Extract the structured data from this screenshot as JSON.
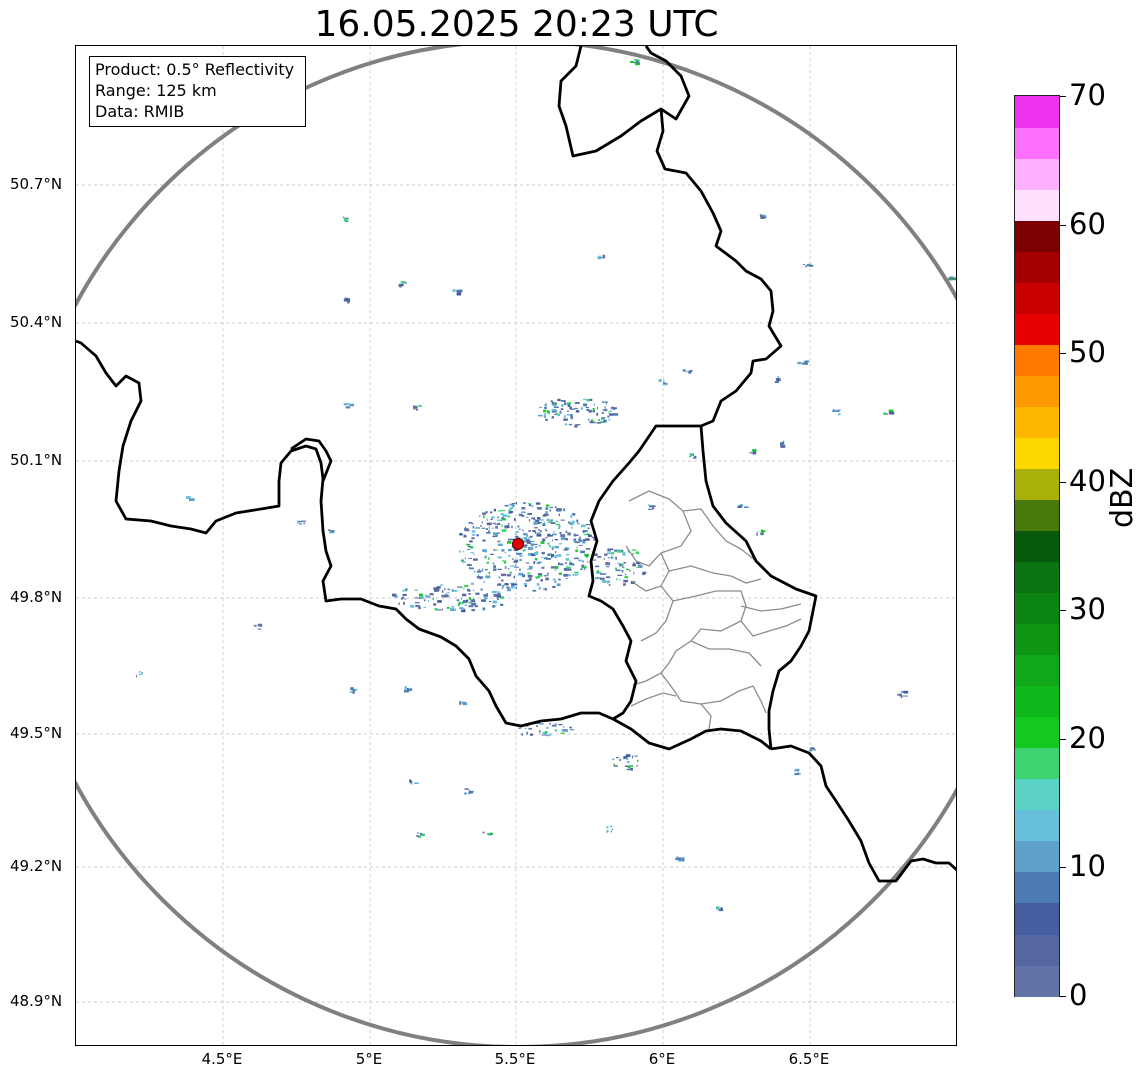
{
  "title": "16.05.2025 20:23 UTC",
  "info": {
    "product": "Product: 0.5° Reflectivity",
    "range": "Range: 125 km",
    "data": "Data: RMIB"
  },
  "axes": {
    "lat_labels": [
      "50.7°N",
      "50.4°N",
      "50.1°N",
      "49.8°N",
      "49.5°N",
      "49.2°N",
      "48.9°N"
    ],
    "lon_labels": [
      "4.5°E",
      "5°E",
      "5.5°E",
      "6°E",
      "6.5°E"
    ]
  },
  "colorbar": {
    "label": "dBZ",
    "ticks": [
      "0",
      "10",
      "20",
      "30",
      "40",
      "50",
      "60",
      "70"
    ],
    "colors": [
      "#6273a8",
      "#5467a0",
      "#445ea1",
      "#4c7cb3",
      "#5ea1ca",
      "#66c0db",
      "#5ad3c5",
      "#3ed472",
      "#14c822",
      "#10b71a",
      "#10a818",
      "#0f9514",
      "#0c8412",
      "#0b7310",
      "#06590b",
      "#487a0a",
      "#aab00a",
      "#ffd700",
      "#ffb800",
      "#ff9a00",
      "#ff7a00",
      "#e60000",
      "#c80000",
      "#a50000",
      "#7d0000",
      "#ffe0ff",
      "#ffb0ff",
      "#ff70ff",
      "#ee33ee"
    ]
  },
  "map": {
    "radar_site_color": "#e00000",
    "range_ring_color": "#808080",
    "border_color": "#000000",
    "province_color": "#8c8c8c"
  }
}
